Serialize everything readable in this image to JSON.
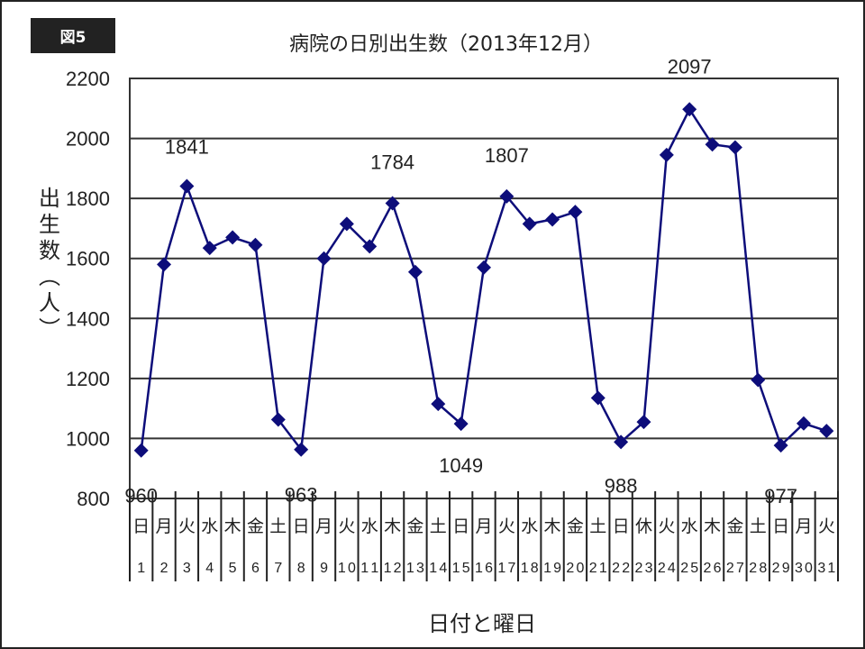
{
  "figure_label": "図5",
  "chart_data": {
    "type": "line",
    "title": "病院の日別出生数（2013年12月）",
    "xlabel": "日付と曜日",
    "ylabel": "出生数（人）",
    "ylim": [
      800,
      2200
    ],
    "yticks": [
      800,
      1000,
      1200,
      1400,
      1600,
      1800,
      2000,
      2200
    ],
    "grid": true,
    "legend": null,
    "marker": "diamond",
    "series_color": "#0d0d7a",
    "x": [
      1,
      2,
      3,
      4,
      5,
      6,
      7,
      8,
      9,
      10,
      11,
      12,
      13,
      14,
      15,
      16,
      17,
      18,
      19,
      20,
      21,
      22,
      23,
      24,
      25,
      26,
      27,
      28,
      29,
      30,
      31
    ],
    "weekdays": [
      "日",
      "月",
      "火",
      "水",
      "木",
      "金",
      "土",
      "日",
      "月",
      "火",
      "水",
      "木",
      "金",
      "土",
      "日",
      "月",
      "火",
      "水",
      "木",
      "金",
      "土",
      "日",
      "休",
      "火",
      "水",
      "木",
      "金",
      "土",
      "日",
      "月",
      "火"
    ],
    "series": [
      {
        "name": "出生数",
        "values": [
          960,
          1580,
          1841,
          1635,
          1670,
          1645,
          1063,
          963,
          1600,
          1715,
          1640,
          1784,
          1555,
          1115,
          1049,
          1570,
          1807,
          1715,
          1730,
          1755,
          1135,
          988,
          1055,
          1945,
          2097,
          1980,
          1970,
          1195,
          977,
          1050,
          1025
        ]
      }
    ],
    "annotations": [
      {
        "day": 1,
        "label": "960"
      },
      {
        "day": 3,
        "label": "1841"
      },
      {
        "day": 8,
        "label": "963"
      },
      {
        "day": 12,
        "label": "1784"
      },
      {
        "day": 15,
        "label": "1049"
      },
      {
        "day": 17,
        "label": "1807"
      },
      {
        "day": 22,
        "label": "988"
      },
      {
        "day": 25,
        "label": "2097"
      },
      {
        "day": 29,
        "label": "977"
      }
    ]
  }
}
